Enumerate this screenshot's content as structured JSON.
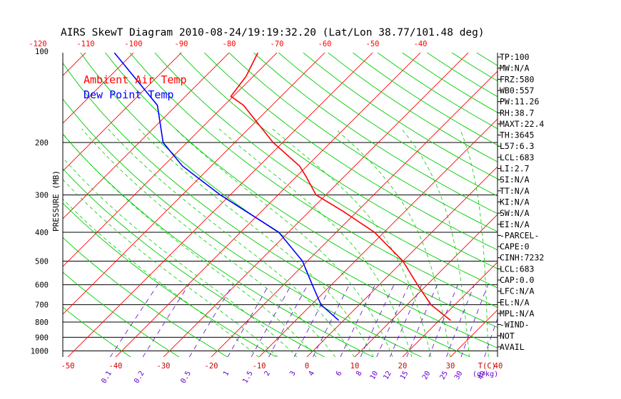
{
  "chart_data": {
    "type": "line",
    "title": "AIRS SkewT Diagram 2010-08-24/19:19:32.20 (Lat/Lon 38.77/101.48 deg)",
    "ylabel": "PRESSURE (MB)",
    "x_bottom_label": "T(C)",
    "x_top_unit": "deg C (top scale)",
    "mixing_ratio_label": "(g/kg)",
    "pressure_ticks": [
      "100",
      "200",
      "300",
      "400",
      "500",
      "600",
      "700",
      "800",
      "900",
      "1000"
    ],
    "pressure_tick_values": [
      100,
      200,
      300,
      400,
      500,
      600,
      700,
      800,
      900,
      1000
    ],
    "pressure_lines": [
      200,
      300,
      400,
      500,
      600,
      700,
      800,
      900,
      1000
    ],
    "bottom_temp_ticks": [
      "-50",
      "-40",
      "-30",
      "-20",
      "-10",
      "0",
      "10",
      "20",
      "30",
      "40"
    ],
    "bottom_temp_values": [
      -50,
      -40,
      -30,
      -20,
      -10,
      0,
      10,
      20,
      30,
      40
    ],
    "top_temp_ticks": [
      "-120",
      "-110",
      "-100",
      "-90",
      "-80",
      "-70",
      "-60",
      "-50",
      "-40"
    ],
    "top_temp_values": [
      -120,
      -110,
      -100,
      -90,
      -80,
      -70,
      -60,
      -50,
      -40
    ],
    "mixing_ratio_ticks": [
      "0.1",
      "0.2",
      "0.5",
      "1",
      "1.5",
      "2",
      "3",
      "4",
      "6",
      "8",
      "10",
      "12",
      "15",
      "20",
      "25",
      "30",
      "40"
    ],
    "mixing_ratio_values": [
      0.1,
      0.2,
      0.5,
      1,
      1.5,
      2,
      3,
      4,
      6,
      8,
      10,
      12,
      15,
      20,
      25,
      30,
      40
    ],
    "legend": [
      {
        "name": "Ambient Air Temp",
        "color": "#ff0000"
      },
      {
        "name": "Dew Point Temp",
        "color": "#0000ff"
      }
    ],
    "series": [
      {
        "name": "Ambient Air Temp",
        "color": "#ff0000",
        "points": [
          {
            "p": 790,
            "t": 22.4
          },
          {
            "p": 700,
            "t": 15.0
          },
          {
            "p": 600,
            "t": 8.0
          },
          {
            "p": 500,
            "t": 0.0
          },
          {
            "p": 400,
            "t": -12.0
          },
          {
            "p": 340,
            "t": -23.0
          },
          {
            "p": 300,
            "t": -32.0
          },
          {
            "p": 260,
            "t": -38.0
          },
          {
            "p": 240,
            "t": -41.5
          },
          {
            "p": 200,
            "t": -52.0
          },
          {
            "p": 150,
            "t": -66.0
          },
          {
            "p": 140,
            "t": -70.5
          },
          {
            "p": 120,
            "t": -71.5
          },
          {
            "p": 100,
            "t": -74.0
          }
        ]
      },
      {
        "name": "Dew Point Temp",
        "color": "#0000ff",
        "points": [
          {
            "p": 790,
            "t": -1.0
          },
          {
            "p": 700,
            "t": -8.0
          },
          {
            "p": 600,
            "t": -14.0
          },
          {
            "p": 500,
            "t": -21.0
          },
          {
            "p": 400,
            "t": -32.0
          },
          {
            "p": 300,
            "t": -52.0
          },
          {
            "p": 240,
            "t": -66.0
          },
          {
            "p": 200,
            "t": -75.0
          },
          {
            "p": 150,
            "t": -84.0
          },
          {
            "p": 100,
            "t": -104.0
          }
        ]
      }
    ]
  },
  "stats": [
    "TP:100",
    "MW:N/A",
    "FRZ:580",
    "WB0:557",
    "PW:11.26",
    "RH:38.7",
    "MAXT:22.4",
    "TH:3645",
    "L57:6.3",
    "LCL:683",
    "LI:2.7",
    "SI:N/A",
    "TT:N/A",
    "KI:N/A",
    "SW:N/A",
    "EI:N/A",
    "-PARCEL-",
    "CAPE:0",
    "CINH:7232",
    "LCL:683",
    "CAP:0.0",
    "LFC:N/A",
    "EL:N/A",
    "MPL:N/A",
    "-WIND-",
    "NOT",
    "AVAIL"
  ],
  "colors": {
    "isotherm": "#ff0000",
    "dry_adiabat": "#00cc00",
    "moist_adiabat": "#00cc00",
    "mixing_ratio": "#6600cc",
    "pressure_line": "#000000",
    "top_scale": "#ff0000",
    "bottom_scale": "#cc0000",
    "mr_scale": "#6600cc"
  }
}
